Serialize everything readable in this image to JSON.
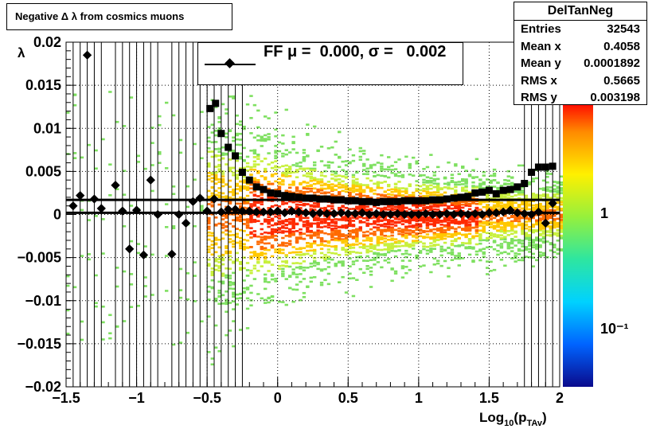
{
  "title": "Negative Δ λ  from cosmics muons",
  "stats": {
    "name": "DelTanNeg",
    "rows": [
      {
        "label": "Entries",
        "value": "32543"
      },
      {
        "label": "Mean x",
        "value": "0.4058"
      },
      {
        "label": "Mean y",
        "value": "0.0001892"
      },
      {
        "label": "RMS x",
        "value": "0.5665"
      },
      {
        "label": "RMS y",
        "value": "0.003198"
      }
    ]
  },
  "legend": {
    "text": "FF μ =  0.000, σ =   0.002"
  },
  "chart_data": {
    "type": "heatmap",
    "title": "Negative Δ λ  from cosmics muons",
    "xlabel": "Log10(pTAv)",
    "ylabel": "λ",
    "xlim": [
      -1.5,
      2
    ],
    "ylim": [
      -0.02,
      0.02
    ],
    "x_ticks": [
      "−1.5",
      "−1",
      "−0.5",
      "0",
      "0.5",
      "1",
      "1.5",
      "2"
    ],
    "y_ticks": [
      "−0.02",
      "−0.015",
      "−0.01",
      "−0.005",
      "0",
      "0.005",
      "0.01",
      "0.015",
      "0.02"
    ],
    "z_ticks": [
      "1",
      "10⁻¹"
    ],
    "grid": true,
    "colorbar": "log",
    "mean_series": {
      "name": "mean",
      "marker": "diamond",
      "x": [
        -1.45,
        -1.4,
        -1.35,
        -1.3,
        -1.25,
        -1.15,
        -1.1,
        -1.05,
        -1.0,
        -0.95,
        -0.9,
        -0.85,
        -0.75,
        -0.7,
        -0.65,
        -0.6,
        -0.55,
        -0.5,
        -0.45,
        -0.4,
        -0.35,
        -0.3,
        -0.25,
        -0.2,
        -0.15,
        -0.1,
        -0.05,
        0.0,
        0.05,
        0.1,
        0.15,
        0.2,
        0.25,
        0.3,
        0.35,
        0.4,
        0.45,
        0.5,
        0.55,
        0.6,
        0.65,
        0.7,
        0.75,
        0.8,
        0.85,
        0.9,
        0.95,
        1.0,
        1.05,
        1.1,
        1.15,
        1.2,
        1.25,
        1.3,
        1.35,
        1.4,
        1.45,
        1.5,
        1.55,
        1.6,
        1.65,
        1.7,
        1.75,
        1.8,
        1.85,
        1.9,
        1.95
      ],
      "y": [
        0.001,
        0.0022,
        0.0185,
        0.0018,
        0.0007,
        0.0034,
        0.0004,
        -0.004,
        0.0005,
        -0.0047,
        0.004,
        0.0,
        -0.0046,
        0.0,
        -0.001,
        0.0015,
        0.0019,
        0.0004,
        0.0018,
        0.0003,
        0.0006,
        0.0006,
        0.0004,
        0.0004,
        0.0003,
        0.0003,
        0.0003,
        0.0004,
        0.0002,
        0.0004,
        0.0003,
        0.0002,
        0.0001,
        0.0002,
        0.0001,
        0.0001,
        0.0002,
        0.0001,
        0.0001,
        0.0002,
        0.0,
        0.0001,
        0.0,
        0.0,
        0.0001,
        0.0,
        0.0,
        0.0,
        0.0001,
        0.0,
        0.0,
        0.0001,
        0.0,
        0.0001,
        0.0,
        0.0001,
        0.0,
        0.0002,
        0.0002,
        0.0003,
        0.0005,
        0.0002,
        0.0001,
        0.0,
        0.0003,
        -0.001,
        0.0013
      ]
    },
    "rms_series": {
      "name": "rms",
      "marker": "square",
      "x": [
        -0.48,
        -0.44,
        -0.4,
        -0.35,
        -0.3,
        -0.25,
        -0.2,
        -0.15,
        -0.1,
        -0.05,
        0.0,
        0.05,
        0.1,
        0.15,
        0.2,
        0.25,
        0.3,
        0.35,
        0.4,
        0.45,
        0.5,
        0.55,
        0.6,
        0.65,
        0.7,
        0.75,
        0.8,
        0.85,
        0.9,
        0.95,
        1.0,
        1.05,
        1.1,
        1.15,
        1.2,
        1.25,
        1.3,
        1.35,
        1.4,
        1.45,
        1.5,
        1.55,
        1.6,
        1.65,
        1.7,
        1.75,
        1.8,
        1.85,
        1.9,
        1.95
      ],
      "y": [
        0.0123,
        0.0129,
        0.0094,
        0.0078,
        0.0068,
        0.0049,
        0.004,
        0.0032,
        0.0029,
        0.0025,
        0.0024,
        0.0022,
        0.0021,
        0.002,
        0.0019,
        0.0019,
        0.0018,
        0.0018,
        0.0017,
        0.0017,
        0.0016,
        0.0016,
        0.0015,
        0.0015,
        0.0014,
        0.0015,
        0.0015,
        0.0015,
        0.0016,
        0.0016,
        0.0016,
        0.0016,
        0.0017,
        0.0017,
        0.0018,
        0.0019,
        0.002,
        0.0021,
        0.0025,
        0.0026,
        0.0028,
        0.0024,
        0.0028,
        0.0029,
        0.0032,
        0.0036,
        0.0049,
        0.0055,
        0.0055,
        0.0056
      ]
    }
  },
  "colors": {
    "high": "#ff2a00",
    "mid": "#ffc800",
    "low": "#7ee060"
  }
}
